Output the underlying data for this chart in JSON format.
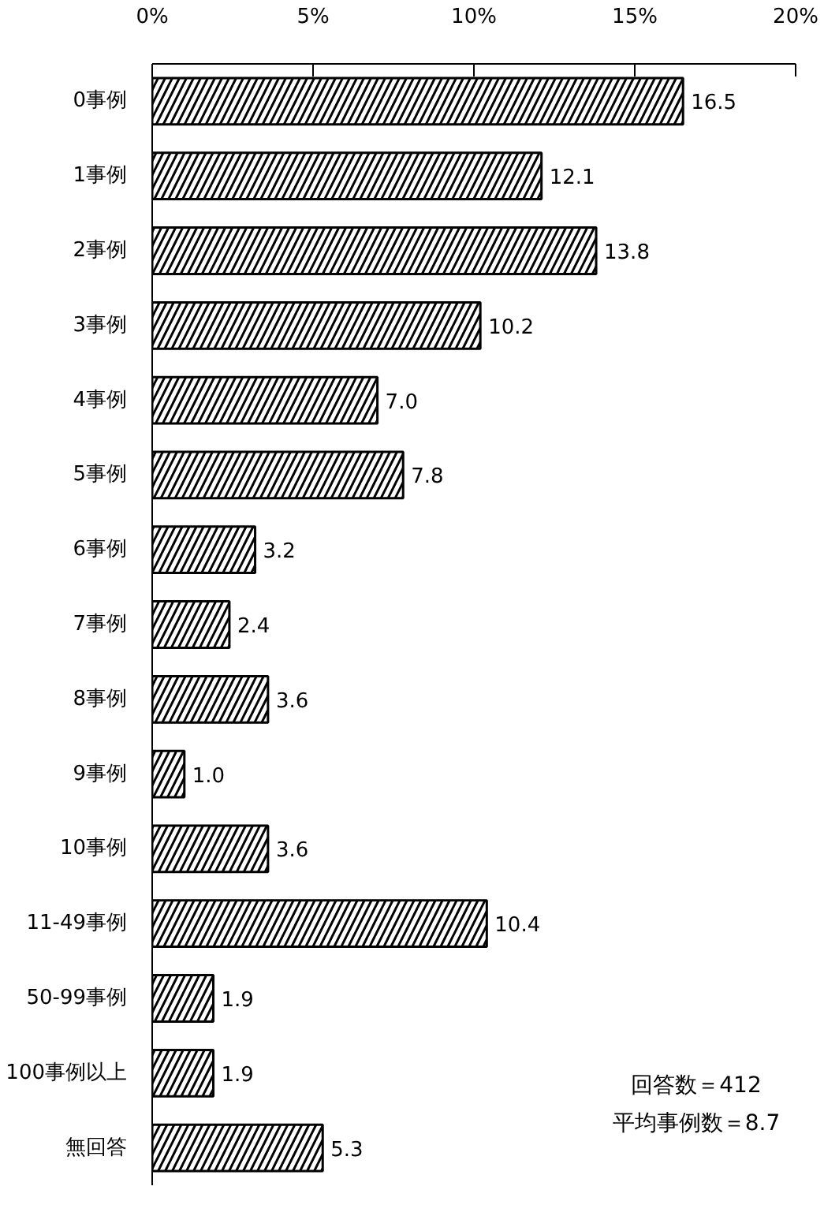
{
  "chart_data": {
    "type": "bar",
    "orientation": "horizontal",
    "categories": [
      "0事例",
      "1事例",
      "2事例",
      "3事例",
      "4事例",
      "5事例",
      "6事例",
      "7事例",
      "8事例",
      "9事例",
      "10事例",
      "11-49事例",
      "50-99事例",
      "100事例以上",
      "無回答"
    ],
    "values": [
      16.5,
      12.1,
      13.8,
      10.2,
      7.0,
      7.8,
      3.2,
      2.4,
      3.6,
      1.0,
      3.6,
      10.4,
      1.9,
      1.9,
      5.3
    ],
    "value_labels": [
      "16.5",
      "12.1",
      "13.8",
      "10.2",
      "7.0",
      "7.8",
      "3.2",
      "2.4",
      "3.6",
      "1.0",
      "3.6",
      "10.4",
      "1.9",
      "1.9",
      "5.3"
    ],
    "color": "#ffffff",
    "xlim": [
      0,
      20
    ],
    "xticks": [
      {
        "value": 0,
        "label": "0%"
      },
      {
        "value": 5,
        "label": "5%"
      },
      {
        "value": 10,
        "label": "10%"
      },
      {
        "value": 15,
        "label": "15%"
      },
      {
        "value": 20,
        "label": "20%"
      }
    ],
    "grid": false,
    "annotations": [
      "回答数＝412",
      "平均事例数＝8.7"
    ]
  }
}
